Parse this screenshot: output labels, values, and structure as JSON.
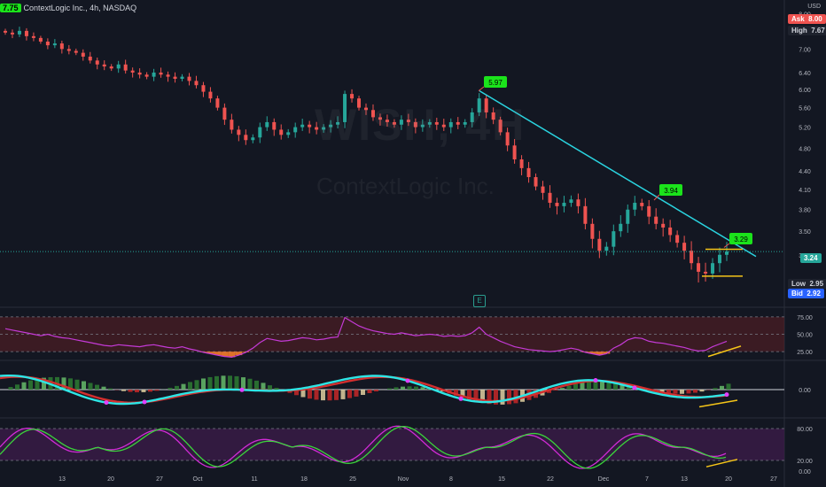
{
  "header": {
    "symbol": "ContextLogic Inc., 4h, NASDAQ",
    "flag_price": "7.75",
    "currency": "USD"
  },
  "watermark": {
    "ticker": "WISH, 4H",
    "company": "ContextLogic Inc."
  },
  "right_panel": {
    "ask_label": "Ask",
    "ask_value": "8.00",
    "high_label": "High",
    "high_value": "7.67",
    "last_price": "3.24",
    "low_label": "Low",
    "low_value": "2.95",
    "bid_label": "Bid",
    "bid_value": "2.92"
  },
  "earnings_badge": "E",
  "colors": {
    "background": "#131722",
    "up": "#26a69a",
    "down": "#ef5350",
    "trendline": "#2ad4e0",
    "support": "#f5c518",
    "label_green": "#1be31b",
    "rsi_line": "#c43ad6",
    "rsi_fill_red": "#5c1f24",
    "ob_fill": "#f57c2b",
    "wave_cyan": "#2ee6e6",
    "wave_red": "#d32f2f",
    "wave_green": "#2e9e2e",
    "stoch_k": "#d12bd6",
    "stoch_d": "#3bd43b",
    "stoch_band": "#3b1c48"
  },
  "chart_data": [
    {
      "type": "candlestick",
      "title": "ContextLogic Inc., 4h, NASDAQ",
      "y_ticks": [
        "8.00",
        "7.60",
        "7.00",
        "6.40",
        "6.00",
        "5.60",
        "5.20",
        "4.80",
        "4.40",
        "4.10",
        "3.80",
        "3.50",
        "3.20"
      ],
      "x_ticks": [
        "13",
        "20",
        "27",
        "Oct",
        "11",
        "18",
        "25",
        "Nov",
        "8",
        "15",
        "22",
        "Dec",
        "7",
        "13",
        "20",
        "27"
      ],
      "close_series": [
        7.45,
        7.4,
        7.5,
        7.35,
        7.3,
        7.2,
        7.1,
        7.15,
        7.0,
        6.95,
        6.9,
        6.8,
        6.7,
        6.6,
        6.55,
        6.5,
        6.6,
        6.45,
        6.4,
        6.35,
        6.3,
        6.4,
        6.35,
        6.3,
        6.25,
        6.3,
        6.2,
        6.1,
        5.95,
        5.8,
        5.6,
        5.35,
        5.15,
        5.05,
        4.95,
        5.0,
        5.2,
        5.3,
        5.15,
        5.05,
        5.1,
        5.2,
        5.25,
        5.2,
        5.15,
        5.2,
        5.25,
        5.3,
        5.9,
        5.8,
        5.6,
        5.55,
        5.4,
        5.35,
        5.3,
        5.25,
        5.35,
        5.3,
        5.2,
        5.25,
        5.3,
        5.25,
        5.2,
        5.3,
        5.25,
        5.3,
        5.5,
        5.8,
        5.5,
        5.35,
        5.1,
        4.85,
        4.6,
        4.45,
        4.3,
        4.15,
        4.05,
        3.9,
        3.85,
        3.9,
        3.95,
        3.85,
        3.6,
        3.4,
        3.25,
        3.3,
        3.5,
        3.6,
        3.8,
        3.9,
        3.85,
        3.7,
        3.6,
        3.55,
        3.45,
        3.35,
        3.25,
        3.1,
        3.0,
        2.98,
        3.1,
        3.2,
        3.24
      ],
      "annotations": [
        {
          "label": "5.97",
          "price": 5.97
        },
        {
          "label": "3.94",
          "price": 3.94
        },
        {
          "label": "3.29",
          "price": 3.29
        }
      ]
    },
    {
      "type": "line",
      "indicator": "rsi",
      "y_ticks": [
        "75.00",
        "50.00",
        "25.00"
      ],
      "values": [
        58,
        56,
        54,
        52,
        50,
        48,
        50,
        47,
        45,
        44,
        42,
        40,
        38,
        36,
        34,
        33,
        35,
        34,
        33,
        32,
        34,
        35,
        33,
        31,
        30,
        32,
        29,
        27,
        24,
        22,
        20,
        18,
        17,
        20,
        24,
        30,
        38,
        44,
        42,
        40,
        41,
        43,
        45,
        44,
        42,
        43,
        45,
        46,
        74,
        68,
        62,
        58,
        55,
        53,
        51,
        50,
        52,
        50,
        48,
        49,
        50,
        49,
        47,
        48,
        47,
        48,
        52,
        60,
        50,
        45,
        40,
        36,
        32,
        30,
        28,
        27,
        26,
        25,
        26,
        28,
        30,
        28,
        24,
        22,
        20,
        22,
        30,
        35,
        42,
        45,
        44,
        40,
        38,
        37,
        35,
        33,
        31,
        28,
        26,
        27,
        32,
        36,
        40
      ]
    },
    {
      "type": "line",
      "indicator": "wavetrend",
      "y_ticks": [
        "0.00"
      ]
    },
    {
      "type": "line",
      "indicator": "stochastic_rsi",
      "y_ticks": [
        "80.00",
        "20.00",
        "0.00"
      ]
    }
  ]
}
